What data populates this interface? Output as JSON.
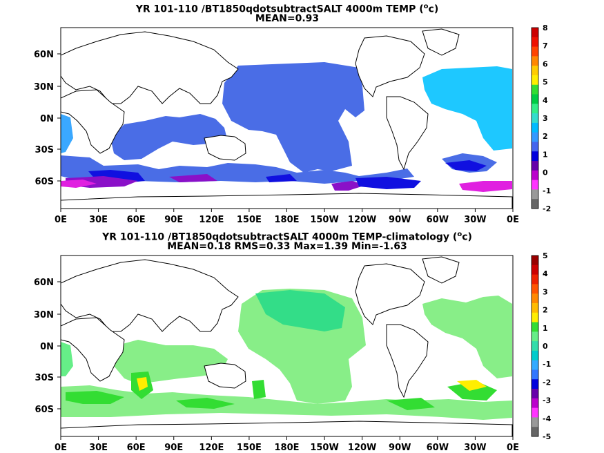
{
  "panels": [
    {
      "title_line1": "YR 101-110 /BT1850qdotsubtractSALT 4000m TEMP (",
      "title_unit_sup": "o",
      "title_unit_after": "c)",
      "title_line2": "MEAN=0.93",
      "colorbar_ticks": [
        "8",
        "7",
        "6",
        "5",
        "4",
        "3",
        "2",
        "1",
        "0",
        "-1",
        "-2"
      ],
      "colorbar_colors": [
        "#cc0000",
        "#ee1100",
        "#ff4400",
        "#ff8800",
        "#ffcc00",
        "#ffee00",
        "#33dd33",
        "#00cc44",
        "#33ee88",
        "#33ddcc",
        "#00bbff",
        "#3399ff",
        "#4466ee",
        "#0000dd",
        "#6600aa",
        "#bb00cc",
        "#ff33ff",
        "#999999",
        "#666666"
      ]
    },
    {
      "title_line1": "YR 101-110 /BT1850qdotsubtractSALT 4000m TEMP-climatology (",
      "title_unit_sup": "o",
      "title_unit_after": "c)",
      "title_line2": "MEAN=0.18   RMS=0.33   Max=1.39   Min=-1.63",
      "colorbar_ticks": [
        "5",
        "4",
        "3",
        "2",
        "1",
        "0",
        "-1",
        "-2",
        "-3",
        "-4",
        "-5"
      ],
      "colorbar_colors": [
        "#990000",
        "#cc0000",
        "#ee2200",
        "#ff5500",
        "#ff8800",
        "#ffbb00",
        "#ffee00",
        "#33dd33",
        "#66ee88",
        "#33ddaa",
        "#00cccc",
        "#33aaff",
        "#3377ff",
        "#0000dd",
        "#6600aa",
        "#bb00cc",
        "#ff33ff",
        "#999999",
        "#666666"
      ]
    }
  ],
  "axes": {
    "x_ticks": [
      "0E",
      "30E",
      "60E",
      "90E",
      "120E",
      "150E",
      "180E",
      "150W",
      "120W",
      "90W",
      "60W",
      "30W",
      "0E"
    ],
    "y_ticks": [
      "60N",
      "30N",
      "0N",
      "30S",
      "60S"
    ]
  },
  "chart_data": [
    {
      "type": "heatmap",
      "variable": "4000m TEMP",
      "unit": "oC",
      "mean": 0.93,
      "color_range": [
        -2,
        8
      ],
      "x_range": [
        "0E",
        "0E"
      ],
      "y_range": [
        "~80S",
        "~90N"
      ]
    },
    {
      "type": "heatmap",
      "variable": "4000m TEMP-climatology",
      "unit": "oC",
      "mean": 0.18,
      "rms": 0.33,
      "max": 1.39,
      "min": -1.63,
      "color_range": [
        -5,
        5
      ],
      "x_range": [
        "0E",
        "0E"
      ],
      "y_range": [
        "~80S",
        "~90N"
      ]
    }
  ]
}
